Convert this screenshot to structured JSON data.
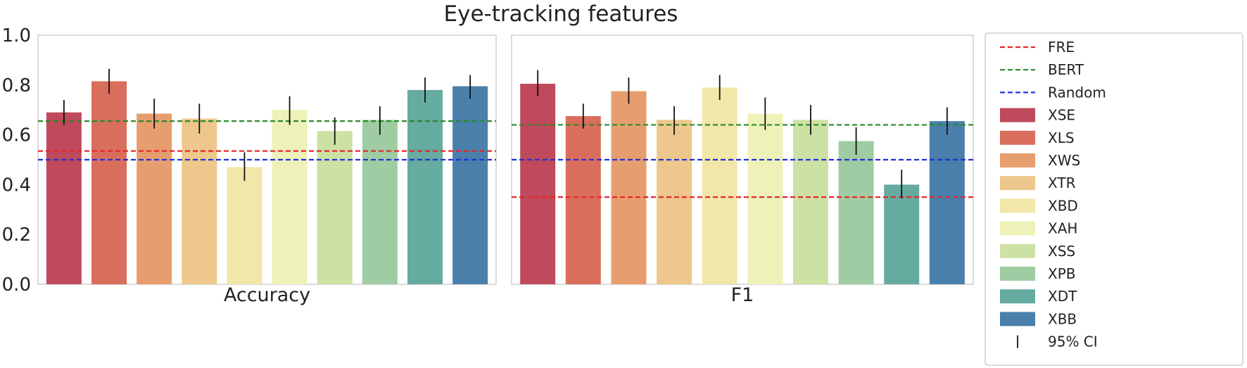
{
  "chart_data": {
    "type": "bar",
    "title": "Eye-tracking features",
    "ylim": [
      0,
      1.0
    ],
    "yticks": [
      "0.0",
      "0.2",
      "0.4",
      "0.6",
      "0.8",
      "1.0"
    ],
    "grid": false,
    "legend_position": "right",
    "series_names": [
      "XSE",
      "XLS",
      "XWS",
      "XTR",
      "XBD",
      "XAH",
      "XSS",
      "XPB",
      "XDT",
      "XBB"
    ],
    "colors": [
      "#be4a5b",
      "#d96e5c",
      "#e79e6e",
      "#edc78b",
      "#f2e6a8",
      "#eef2b8",
      "#cde1a4",
      "#9fcca2",
      "#66aba0",
      "#4a80ab"
    ],
    "panels": [
      {
        "label": "Accuracy",
        "values": [
          0.69,
          0.815,
          0.685,
          0.665,
          0.47,
          0.7,
          0.615,
          0.66,
          0.78,
          0.795
        ],
        "ci_low": [
          0.64,
          0.765,
          0.625,
          0.605,
          0.415,
          0.64,
          0.56,
          0.6,
          0.73,
          0.745
        ],
        "ci_high": [
          0.74,
          0.865,
          0.745,
          0.725,
          0.53,
          0.755,
          0.67,
          0.715,
          0.83,
          0.84
        ],
        "reference": {
          "FRE": 0.535,
          "BERT": 0.655,
          "Random": 0.5
        }
      },
      {
        "label": "F1",
        "values": [
          0.805,
          0.675,
          0.775,
          0.66,
          0.79,
          0.685,
          0.66,
          0.575,
          0.4,
          0.655
        ],
        "ci_low": [
          0.755,
          0.625,
          0.725,
          0.6,
          0.74,
          0.62,
          0.6,
          0.52,
          0.345,
          0.6
        ],
        "ci_high": [
          0.86,
          0.725,
          0.83,
          0.715,
          0.84,
          0.75,
          0.72,
          0.63,
          0.46,
          0.71
        ],
        "reference": {
          "FRE": 0.35,
          "BERT": 0.64,
          "Random": 0.5
        }
      }
    ],
    "reference_lines": [
      {
        "name": "FRE",
        "color": "#e8262a"
      },
      {
        "name": "BERT",
        "color": "#2a8a2a"
      },
      {
        "name": "Random",
        "color": "#2230d9"
      }
    ],
    "ci_label": "95% CI"
  }
}
